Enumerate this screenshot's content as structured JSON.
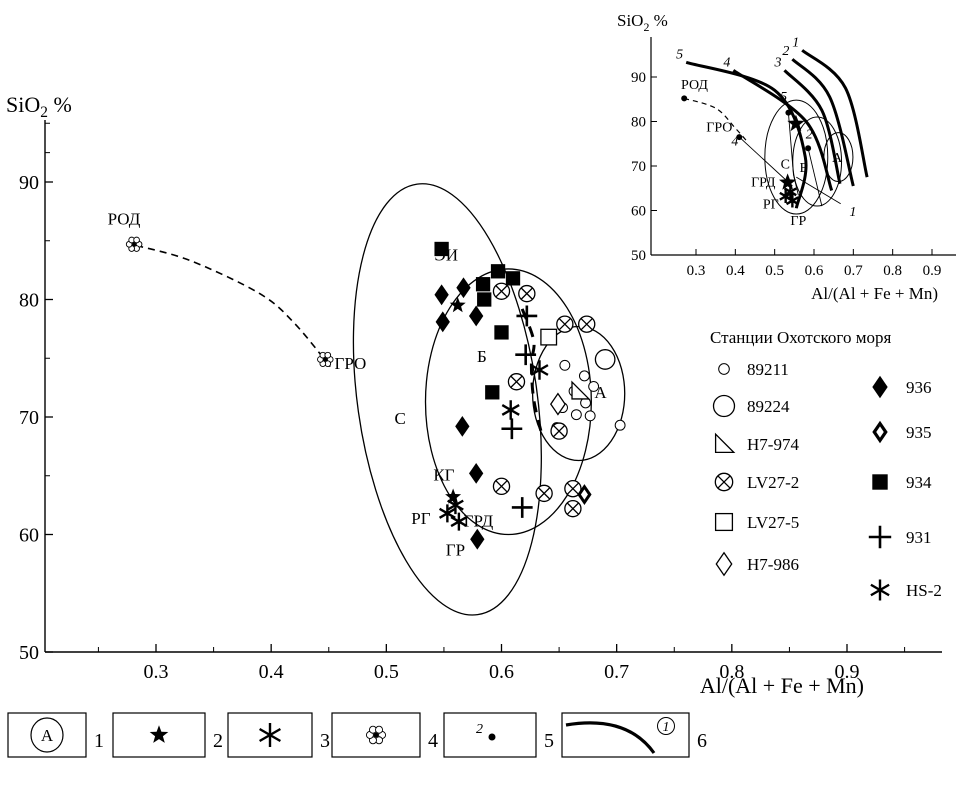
{
  "chart_data": [
    {
      "type": "scatter",
      "ylabel": "SiO₂ %",
      "xlabel": "Al/(Al + Fe + Mn)",
      "xlim": [
        0.2,
        0.94
      ],
      "ylim": [
        50,
        95
      ],
      "xticks": [
        "0.3",
        "0.4",
        "0.5",
        "0.6",
        "0.7",
        "0.8",
        "0.9"
      ],
      "yticks": [
        "50",
        "60",
        "70",
        "80",
        "90"
      ],
      "legend_title": "Станции Охотского моря",
      "legend_placement": "right",
      "fields": [
        {
          "name": "С",
          "center": [
            0.553,
            71.5
          ],
          "rx": 0.078,
          "ry": 18.5,
          "rot_deg": -8
        },
        {
          "name": "Б",
          "center": [
            0.606,
            71.3
          ],
          "rx": 0.072,
          "ry": 11.3,
          "rot_deg": 0
        },
        {
          "name": "А",
          "center": [
            0.667,
            72.0
          ],
          "rx": 0.04,
          "ry": 5.7,
          "rot_deg": 0
        }
      ],
      "trend_lines": [
        {
          "name": "РОД-ГРО",
          "style": "dashed",
          "points": [
            [
              0.283,
              84.6
            ],
            [
              0.33,
              83.3
            ],
            [
              0.39,
              80.5
            ],
            [
              0.42,
              78.0
            ],
            [
              0.452,
              74.2
            ]
          ]
        },
        {
          "name": "Б-trend",
          "style": "dashed",
          "points": [
            [
              0.618,
              79.2
            ],
            [
              0.628,
              76.5
            ],
            [
              0.626,
              74.5
            ],
            [
              0.628,
              71.5
            ],
            [
              0.635,
              68.5
            ]
          ]
        }
      ],
      "reference_points": [
        {
          "label": "РОД",
          "x": 0.281,
          "y": 84.7,
          "marker": "flower"
        },
        {
          "label": "ГРО",
          "x": 0.447,
          "y": 74.9,
          "marker": "flower"
        }
      ],
      "point_labels": [
        {
          "text": "ЭИ",
          "x": 0.552,
          "y": 83.3
        },
        {
          "text": "Б",
          "x": 0.583,
          "y": 74.7
        },
        {
          "text": "С",
          "x": 0.512,
          "y": 69.4
        },
        {
          "text": "А",
          "x": 0.686,
          "y": 71.6
        },
        {
          "text": "КГ",
          "x": 0.55,
          "y": 64.6
        },
        {
          "text": "РГ",
          "x": 0.53,
          "y": 60.9
        },
        {
          "text": "ГРД",
          "x": 0.58,
          "y": 60.7
        },
        {
          "text": "ГР",
          "x": 0.56,
          "y": 58.2
        }
      ],
      "granite_points": [
        {
          "group": "КГ",
          "x": 0.558,
          "y": 63.2,
          "marker": "star"
        },
        {
          "group": "РГ/ГР/ГРД",
          "x": 0.553,
          "y": 61.8,
          "marker": "asterisk"
        },
        {
          "group": "РГ/ГР/ГРД",
          "x": 0.56,
          "y": 62.5,
          "marker": "asterisk"
        },
        {
          "group": "РГ/ГР/ГРД",
          "x": 0.563,
          "y": 61.1,
          "marker": "asterisk"
        },
        {
          "group": "ЭИ",
          "x": 0.562,
          "y": 79.5,
          "marker": "star"
        }
      ],
      "series": [
        {
          "name": "89211",
          "marker": "small-circle",
          "points": [
            [
              0.655,
              74.4
            ],
            [
              0.672,
              73.5
            ],
            [
              0.68,
              72.6
            ],
            [
              0.663,
              72.2
            ],
            [
              0.673,
              71.2
            ],
            [
              0.653,
              70.8
            ],
            [
              0.677,
              70.1
            ],
            [
              0.665,
              70.2
            ],
            [
              0.648,
              69.1
            ],
            [
              0.703,
              69.3
            ]
          ]
        },
        {
          "name": "89224",
          "marker": "circle",
          "points": [
            [
              0.69,
              74.9
            ]
          ]
        },
        {
          "name": "H7-974",
          "marker": "triangle",
          "points": [
            [
              0.668,
              72.2
            ]
          ]
        },
        {
          "name": "LV27-2",
          "marker": "circle-x",
          "points": [
            [
              0.6,
              80.7
            ],
            [
              0.622,
              80.5
            ],
            [
              0.655,
              77.9
            ],
            [
              0.674,
              77.9
            ],
            [
              0.613,
              73.0
            ],
            [
              0.65,
              68.8
            ],
            [
              0.637,
              63.5
            ],
            [
              0.662,
              63.9
            ],
            [
              0.6,
              64.1
            ],
            [
              0.662,
              62.2
            ]
          ]
        },
        {
          "name": "LV27-5",
          "marker": "square-open",
          "points": [
            [
              0.641,
              76.8
            ]
          ]
        },
        {
          "name": "H7-986",
          "marker": "diamond-open",
          "points": [
            [
              0.649,
              71.1
            ]
          ]
        },
        {
          "name": "936",
          "marker": "diamond-filled",
          "points": [
            [
              0.548,
              80.4
            ],
            [
              0.567,
              81.0
            ],
            [
              0.549,
              78.1
            ],
            [
              0.578,
              78.6
            ],
            [
              0.566,
              69.2
            ],
            [
              0.578,
              65.2
            ],
            [
              0.579,
              59.6
            ]
          ]
        },
        {
          "name": "935",
          "marker": "diamond-double",
          "points": [
            [
              0.672,
              63.4
            ]
          ]
        },
        {
          "name": "934",
          "marker": "square",
          "points": [
            [
              0.548,
              84.3
            ],
            [
              0.597,
              82.4
            ],
            [
              0.61,
              81.8
            ],
            [
              0.584,
              81.3
            ],
            [
              0.585,
              80.0
            ],
            [
              0.6,
              77.2
            ],
            [
              0.592,
              72.1
            ]
          ]
        },
        {
          "name": "931",
          "marker": "plus",
          "points": [
            [
              0.622,
              78.6
            ],
            [
              0.621,
              75.3
            ],
            [
              0.609,
              69.0
            ],
            [
              0.618,
              62.3
            ]
          ]
        },
        {
          "name": "HS-2",
          "marker": "asterisk",
          "points": [
            [
              0.633,
              74.0
            ],
            [
              0.608,
              70.6
            ]
          ]
        }
      ]
    },
    {
      "type": "line",
      "role": "inset",
      "ylabel": "SiO₂ %",
      "xlabel": "Al/(Al + Fe + Mn)",
      "xlim": [
        0.23,
        0.97
      ],
      "ylim": [
        50,
        98
      ],
      "xticks": [
        "0.3",
        "0.4",
        "0.5",
        "0.6",
        "0.7",
        "0.8",
        "0.9"
      ],
      "yticks": [
        "50",
        "60",
        "70",
        "80",
        "90"
      ],
      "curves": [
        {
          "label": "1",
          "points": [
            [
              0.57,
              96.0
            ],
            [
              0.68,
              87.5
            ],
            [
              0.735,
              67.5
            ]
          ]
        },
        {
          "label": "2",
          "points": [
            [
              0.545,
              94.0
            ],
            [
              0.64,
              85.5
            ],
            [
              0.7,
              65.5
            ]
          ]
        },
        {
          "label": "3",
          "points": [
            [
              0.525,
              91.5
            ],
            [
              0.62,
              82.5
            ],
            [
              0.666,
              66.0
            ]
          ]
        },
        {
          "label": "4",
          "points": [
            [
              0.395,
              91.5
            ],
            [
              0.58,
              80.0
            ],
            [
              0.645,
              64.5
            ]
          ]
        },
        {
          "label": "5",
          "points": [
            [
              0.275,
              93.3
            ],
            [
              0.5,
              87.0
            ],
            [
              0.578,
              72.0
            ],
            [
              0.555,
              60.5
            ]
          ]
        }
      ],
      "fields": [
        {
          "name": "С",
          "center": [
            0.555,
            72.0
          ],
          "rx": 0.08,
          "ry": 12.8
        },
        {
          "name": "Б",
          "center": [
            0.608,
            71.0
          ],
          "rx": 0.062,
          "ry": 10.0
        },
        {
          "name": "А",
          "center": [
            0.662,
            72.0
          ],
          "rx": 0.037,
          "ry": 5.5
        }
      ],
      "trend_lines": [
        {
          "name": "РОД-ГРО",
          "style": "dashed",
          "points": [
            [
              0.27,
              85.2
            ],
            [
              0.35,
              83.0
            ],
            [
              0.4,
              78.5
            ],
            [
              0.43,
              75.5
            ]
          ]
        }
      ],
      "tie_lines": [
        {
          "label": "4",
          "points": [
            [
              0.41,
              76.5
            ],
            [
              0.545,
              65.5
            ]
          ]
        },
        {
          "label": "5",
          "points": [
            [
              0.535,
              82.0
            ],
            [
              0.548,
              68.0
            ],
            [
              0.56,
              63.5
            ]
          ]
        },
        {
          "label": "2",
          "points": [
            [
              0.585,
              74.0
            ],
            [
              0.62,
              61.0
            ]
          ]
        },
        {
          "label": "1",
          "points": [
            [
              0.555,
              67.5
            ],
            [
              0.668,
              61.5
            ]
          ]
        }
      ],
      "points": [
        {
          "label": "РОД",
          "x": 0.27,
          "y": 85.2,
          "marker": "dot"
        },
        {
          "label": "ГРО",
          "x": 0.41,
          "y": 76.5,
          "marker": "dot"
        },
        {
          "label": "",
          "x": 0.535,
          "y": 82.0,
          "marker": "dot"
        },
        {
          "label": "",
          "x": 0.585,
          "y": 74.0,
          "marker": "dot"
        },
        {
          "label": "",
          "x": 0.554,
          "y": 79.5,
          "marker": "star"
        },
        {
          "label": "ГРД",
          "x": 0.533,
          "y": 66.3,
          "marker": "star"
        }
      ],
      "asterisks": [
        [
          0.528,
          63.2
        ],
        [
          0.54,
          64.2
        ],
        [
          0.545,
          62.2
        ]
      ],
      "labels": [
        {
          "text": "РОД",
          "x": 0.262,
          "y": 87.3
        },
        {
          "text": "ГРО",
          "x": 0.326,
          "y": 77.8
        },
        {
          "text": "4",
          "x": 0.39,
          "y": 74.6
        },
        {
          "text": "5",
          "x": 0.514,
          "y": 84.6
        },
        {
          "text": "2",
          "x": 0.579,
          "y": 76.2
        },
        {
          "text": "С",
          "x": 0.515,
          "y": 69.4
        },
        {
          "text": "Б",
          "x": 0.563,
          "y": 68.7
        },
        {
          "text": "А",
          "x": 0.646,
          "y": 70.9
        },
        {
          "text": "ГРД",
          "x": 0.44,
          "y": 65.4
        },
        {
          "text": "РГ",
          "x": 0.47,
          "y": 60.5
        },
        {
          "text": "ГР",
          "x": 0.54,
          "y": 56.7
        },
        {
          "text": "1",
          "x": 0.69,
          "y": 58.8
        }
      ]
    }
  ],
  "key": [
    {
      "number": "1",
      "symbol": "field-ellipse",
      "symbol_text": "А"
    },
    {
      "number": "2",
      "symbol": "star",
      "symbol_text": "★"
    },
    {
      "number": "3",
      "symbol": "asterisk",
      "symbol_text": "✱"
    },
    {
      "number": "4",
      "symbol": "flower",
      "symbol_text": "❀"
    },
    {
      "number": "5",
      "symbol": "numbered-dot",
      "symbol_text": "2"
    },
    {
      "number": "6",
      "symbol": "numbered-curve",
      "symbol_text": "1"
    }
  ]
}
